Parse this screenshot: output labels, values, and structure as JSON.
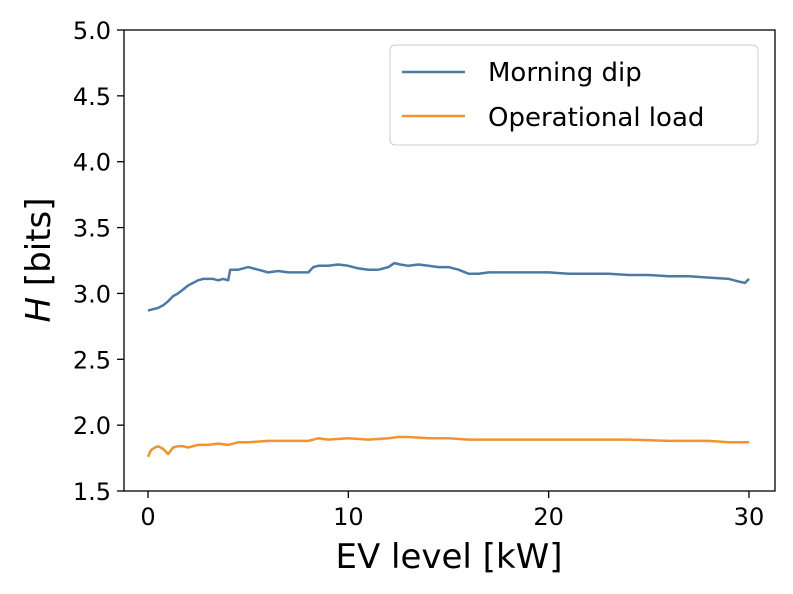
{
  "chart_data": {
    "type": "line",
    "title": "",
    "xlabel": "EV level [kW]",
    "ylabel_italic": "H",
    "ylabel_rest": " [bits]",
    "xlim": [
      -1.2,
      31.3
    ],
    "ylim": [
      1.5,
      5.0
    ],
    "xticks": [
      0,
      10,
      20,
      30
    ],
    "yticks": [
      1.5,
      2.0,
      2.5,
      3.0,
      3.5,
      4.0,
      4.5,
      5.0
    ],
    "xtick_labels": [
      "0",
      "10",
      "20",
      "30"
    ],
    "ytick_labels": [
      "1.5",
      "2.0",
      "2.5",
      "3.0",
      "3.5",
      "4.0",
      "4.5",
      "5.0"
    ],
    "legend_position": "top-right",
    "series": [
      {
        "name": "Morning dip",
        "color": "#4a7aa5",
        "x": [
          0,
          0.25,
          0.5,
          0.75,
          1,
          1.25,
          1.5,
          1.75,
          2,
          2.25,
          2.5,
          2.75,
          3,
          3.25,
          3.5,
          3.75,
          4,
          4.1,
          4.25,
          4.5,
          4.75,
          5,
          5.25,
          5.5,
          5.75,
          6,
          6.5,
          7,
          7.5,
          8,
          8.25,
          8.5,
          9,
          9.5,
          10,
          10.5,
          11,
          11.5,
          12,
          12.3,
          12.6,
          13,
          13.5,
          14,
          14.5,
          15,
          15.5,
          16,
          16.5,
          17,
          17.5,
          18,
          19,
          20,
          21,
          22,
          23,
          24,
          25,
          26,
          27,
          28,
          29,
          29.5,
          29.8,
          30
        ],
        "values": [
          2.87,
          2.88,
          2.89,
          2.91,
          2.94,
          2.98,
          3.0,
          3.03,
          3.06,
          3.08,
          3.1,
          3.11,
          3.11,
          3.11,
          3.1,
          3.11,
          3.1,
          3.18,
          3.18,
          3.18,
          3.19,
          3.2,
          3.19,
          3.18,
          3.17,
          3.16,
          3.17,
          3.16,
          3.16,
          3.16,
          3.2,
          3.21,
          3.21,
          3.22,
          3.21,
          3.19,
          3.18,
          3.18,
          3.2,
          3.23,
          3.22,
          3.21,
          3.22,
          3.21,
          3.2,
          3.2,
          3.18,
          3.15,
          3.15,
          3.16,
          3.16,
          3.16,
          3.16,
          3.16,
          3.15,
          3.15,
          3.15,
          3.14,
          3.14,
          3.13,
          3.13,
          3.12,
          3.11,
          3.09,
          3.08,
          3.11
        ]
      },
      {
        "name": "Operational load",
        "color": "#f5922f",
        "x": [
          0,
          0.15,
          0.35,
          0.5,
          0.75,
          1,
          1.25,
          1.5,
          1.75,
          2,
          2.5,
          3,
          3.5,
          4,
          4.5,
          5,
          6,
          7,
          8,
          8.5,
          9,
          10,
          11,
          12,
          12.5,
          13,
          14,
          15,
          16,
          17,
          18,
          20,
          22,
          24,
          26,
          28,
          29,
          30
        ],
        "values": [
          1.76,
          1.81,
          1.83,
          1.84,
          1.82,
          1.78,
          1.83,
          1.84,
          1.84,
          1.83,
          1.85,
          1.85,
          1.86,
          1.85,
          1.87,
          1.87,
          1.88,
          1.88,
          1.88,
          1.9,
          1.89,
          1.9,
          1.89,
          1.9,
          1.91,
          1.91,
          1.9,
          1.9,
          1.89,
          1.89,
          1.89,
          1.89,
          1.89,
          1.89,
          1.88,
          1.88,
          1.87,
          1.87
        ]
      }
    ]
  }
}
